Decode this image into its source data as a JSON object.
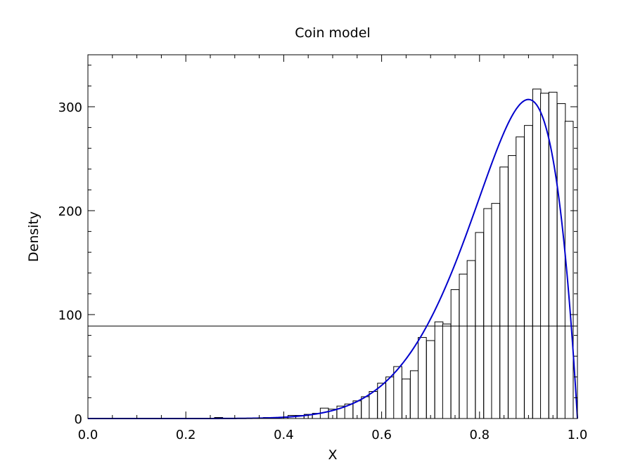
{
  "chart_data": {
    "type": "bar",
    "title": "Coin model",
    "xlabel": "X",
    "ylabel": "Density",
    "xlim": [
      0.0,
      1.0
    ],
    "ylim": [
      0,
      350
    ],
    "xticks": [
      "0.0",
      "0.2",
      "0.4",
      "0.6",
      "0.8",
      "1.0"
    ],
    "yticks": [
      "0",
      "100",
      "200",
      "300"
    ],
    "grid": false,
    "histogram": {
      "name": "samples",
      "bin_width": 0.0167,
      "bins": [
        {
          "x": 0.267,
          "value": 1
        },
        {
          "x": 0.367,
          "value": 1
        },
        {
          "x": 0.383,
          "value": 1
        },
        {
          "x": 0.4,
          "value": 1
        },
        {
          "x": 0.417,
          "value": 3
        },
        {
          "x": 0.433,
          "value": 3
        },
        {
          "x": 0.45,
          "value": 4
        },
        {
          "x": 0.467,
          "value": 5
        },
        {
          "x": 0.483,
          "value": 10
        },
        {
          "x": 0.5,
          "value": 9
        },
        {
          "x": 0.517,
          "value": 12
        },
        {
          "x": 0.533,
          "value": 14
        },
        {
          "x": 0.55,
          "value": 17
        },
        {
          "x": 0.567,
          "value": 21
        },
        {
          "x": 0.583,
          "value": 26
        },
        {
          "x": 0.6,
          "value": 34
        },
        {
          "x": 0.617,
          "value": 40
        },
        {
          "x": 0.633,
          "value": 50
        },
        {
          "x": 0.65,
          "value": 38
        },
        {
          "x": 0.667,
          "value": 46
        },
        {
          "x": 0.683,
          "value": 78
        },
        {
          "x": 0.7,
          "value": 75
        },
        {
          "x": 0.717,
          "value": 93
        },
        {
          "x": 0.733,
          "value": 91
        },
        {
          "x": 0.75,
          "value": 124
        },
        {
          "x": 0.767,
          "value": 139
        },
        {
          "x": 0.783,
          "value": 152
        },
        {
          "x": 0.8,
          "value": 179
        },
        {
          "x": 0.817,
          "value": 202
        },
        {
          "x": 0.833,
          "value": 207
        },
        {
          "x": 0.85,
          "value": 242
        },
        {
          "x": 0.867,
          "value": 253
        },
        {
          "x": 0.883,
          "value": 271
        },
        {
          "x": 0.9,
          "value": 282
        },
        {
          "x": 0.917,
          "value": 317
        },
        {
          "x": 0.933,
          "value": 313
        },
        {
          "x": 0.95,
          "value": 314
        },
        {
          "x": 0.967,
          "value": 303
        },
        {
          "x": 0.983,
          "value": 286
        }
      ]
    },
    "curve": {
      "name": "density",
      "color": "#0000cc",
      "model": "beta",
      "alpha": 10,
      "beta": 2,
      "scale": 3,
      "peak": 307
    },
    "hline": {
      "y": 89,
      "color": "#000000"
    }
  },
  "colors": {
    "bar_edge": "#000000",
    "bar_fill": "#ffffff",
    "curve": "#0000cc"
  }
}
